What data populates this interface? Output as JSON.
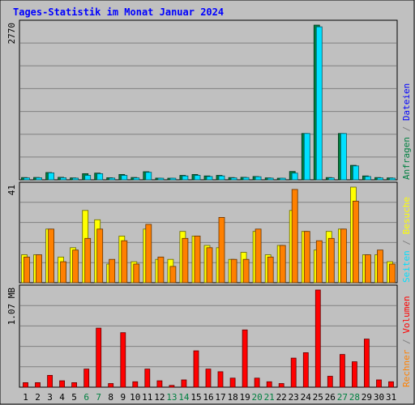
{
  "chart_data": {
    "title": "Tages-Statistik im Monat Januar 2024",
    "days": [
      "1",
      "2",
      "3",
      "4",
      "5",
      "6",
      "7",
      "8",
      "9",
      "10",
      "11",
      "12",
      "13",
      "14",
      "15",
      "16",
      "17",
      "18",
      "19",
      "20",
      "21",
      "22",
      "23",
      "24",
      "25",
      "26",
      "27",
      "28",
      "29",
      "30",
      "31"
    ],
    "weekend_days": [
      6,
      7,
      13,
      14,
      20,
      21,
      27,
      28
    ],
    "panels": [
      {
        "id": "requests",
        "type": "bar",
        "max_label": "2770",
        "ymax": 2770,
        "side_labels": [
          {
            "text": "Anfragen",
            "color": "#008040"
          },
          {
            "text": " / ",
            "color": "#808080"
          },
          {
            "text": "Dateien",
            "color": "#0000ff"
          }
        ],
        "series": [
          {
            "name": "Anfragen",
            "color": "#008040",
            "values": [
              40,
              42,
              130,
              45,
              35,
              110,
              120,
              38,
              95,
              42,
              145,
              30,
              28,
              80,
              95,
              70,
              80,
              40,
              45,
              60,
              35,
              28,
              150,
              830,
              2770,
              40,
              830,
              260,
              70,
              40,
              35
            ]
          },
          {
            "name": "Dateien",
            "color": "#00e0ff",
            "values": [
              35,
              38,
              125,
              38,
              30,
              80,
              110,
              32,
              80,
              35,
              135,
              25,
              22,
              70,
              80,
              60,
              70,
              35,
              40,
              55,
              30,
              25,
              120,
              830,
              2740,
              35,
              830,
              250,
              60,
              35,
              30
            ]
          }
        ]
      },
      {
        "id": "visits",
        "type": "bar",
        "max_label": "41",
        "ymax": 41,
        "side_labels": [
          {
            "text": "Seiten",
            "color": "#00e0ff"
          },
          {
            "text": " / ",
            "color": "#808080"
          },
          {
            "text": "Besuche",
            "color": "#ffff00"
          }
        ],
        "series": [
          {
            "name": "Besuche",
            "color": "#ffff00",
            "values": [
              12,
              12,
              23,
              11,
              15,
              31,
              27,
              8,
              20,
              9,
              23,
              10,
              10,
              22,
              20,
              16,
              15,
              10,
              13,
              22,
              12,
              16,
              31,
              22,
              14,
              22,
              23,
              41,
              12,
              12,
              9
            ]
          },
          {
            "name": "Seiten",
            "color": "#ff8000",
            "values": [
              11,
              12,
              23,
              9,
              14,
              19,
              23,
              10,
              18,
              8,
              25,
              11,
              7,
              19,
              20,
              15,
              28,
              10,
              10,
              23,
              11,
              16,
              40,
              22,
              18,
              19,
              23,
              35,
              12,
              14,
              8
            ]
          }
        ]
      },
      {
        "id": "volume",
        "type": "bar",
        "max_label": "1.07 MB",
        "ymax": 1.07,
        "side_labels": [
          {
            "text": "Rechner",
            "color": "#ff8000"
          },
          {
            "text": " / ",
            "color": "#808080"
          },
          {
            "text": "Volumen",
            "color": "#ff0000"
          }
        ],
        "series": [
          {
            "name": "Volumen",
            "color": "#ff0000",
            "values": [
              0.05,
              0.05,
              0.13,
              0.07,
              0.05,
              0.2,
              0.65,
              0.04,
              0.6,
              0.06,
              0.2,
              0.07,
              0.02,
              0.08,
              0.4,
              0.2,
              0.17,
              0.1,
              0.63,
              0.1,
              0.06,
              0.04,
              0.32,
              0.38,
              1.07,
              0.12,
              0.36,
              0.28,
              0.53,
              0.08,
              0.06
            ]
          }
        ]
      }
    ]
  }
}
